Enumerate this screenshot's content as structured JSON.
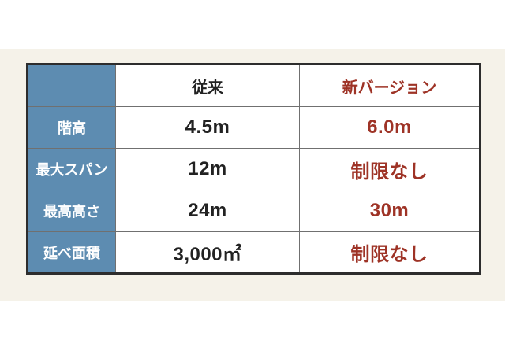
{
  "chart_data": {
    "type": "table",
    "columns": [
      "",
      "従来",
      "新バージョン"
    ],
    "row_labels": [
      "階高",
      "最大スパン",
      "最高高さ",
      "延べ面積"
    ],
    "series": [
      {
        "name": "従来",
        "values": [
          "4.5m",
          "12m",
          "24m",
          "3,000㎡"
        ]
      },
      {
        "name": "新バージョン",
        "values": [
          "6.0m",
          "制限なし",
          "30m",
          "制限なし"
        ]
      }
    ],
    "legend_position": "none",
    "grid": true
  },
  "colors": {
    "accent_blue": "#5d8cb1",
    "accent_red": "#9e3326",
    "text_black": "#222222",
    "border_dark": "#2d2d2d",
    "gridline_gray": "#707070",
    "background_cream": "#f5f2e9",
    "background_white": "#ffffff",
    "label_text_white": "#ffffff"
  }
}
